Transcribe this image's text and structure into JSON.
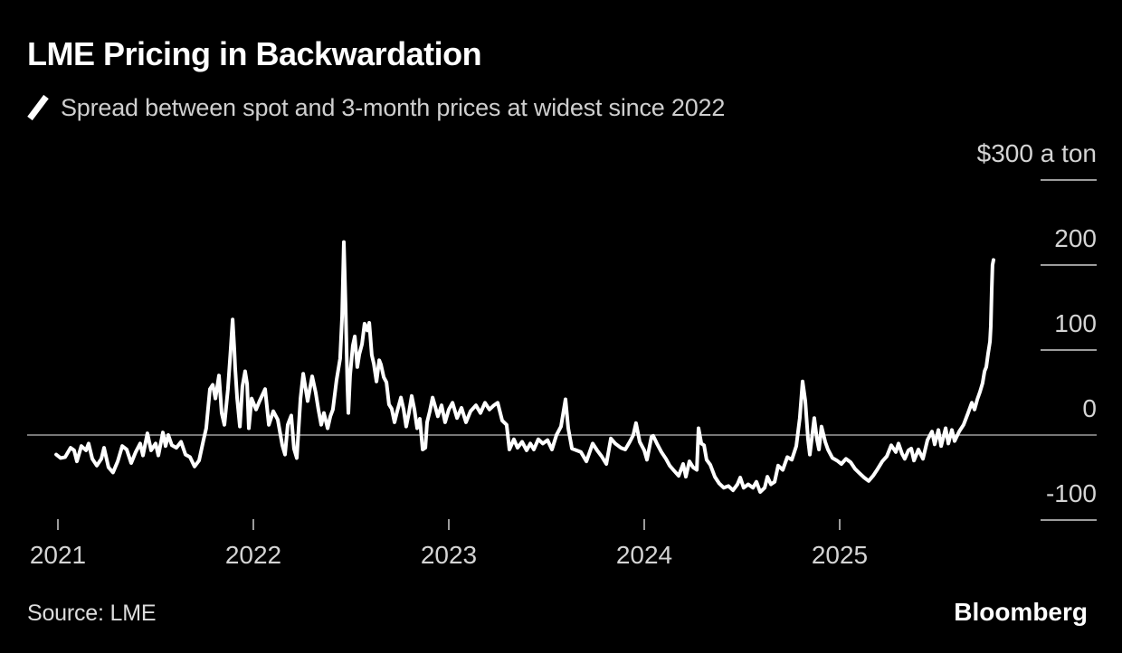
{
  "page": {
    "background": "#000000"
  },
  "header": {
    "title": "LME Pricing in Backwardation",
    "legend": {
      "icon": "line-series-marker",
      "text": "Spread between spot and 3-month prices at widest since 2022"
    }
  },
  "footer": {
    "source": "Source: LME",
    "brand": "Bloomberg"
  },
  "chart_data": {
    "type": "line",
    "title": "LME Pricing in Backwardation",
    "subtitle": "Spread between spot and 3-month prices at widest since 2022",
    "legend_position": "top-left",
    "grid": "zero-line-only",
    "x_axis": {
      "ticks": [
        2021,
        2022,
        2023,
        2024,
        2025
      ],
      "range": [
        2020.99,
        2025.84
      ]
    },
    "y_axis": {
      "side": "right",
      "range": [
        -100,
        300
      ],
      "ticks": [
        {
          "label": "$300 a ton",
          "value": 300
        },
        {
          "label": "200",
          "value": 200
        },
        {
          "label": "100",
          "value": 100
        },
        {
          "label": "0",
          "value": 0
        },
        {
          "label": "-100",
          "value": -100
        }
      ]
    },
    "colors": {
      "line": "#ffffff",
      "zero_line": "#767676",
      "tick": "#9c9c9c",
      "label": "#d4d4d4",
      "background": "#000000"
    },
    "points": [
      [
        2020.991,
        -23
      ],
      [
        2021.014,
        -27
      ],
      [
        2021.037,
        -26
      ],
      [
        2021.065,
        -15
      ],
      [
        2021.083,
        -18
      ],
      [
        2021.097,
        -31
      ],
      [
        2021.12,
        -13
      ],
      [
        2021.144,
        -18
      ],
      [
        2021.157,
        -10
      ],
      [
        2021.176,
        -28
      ],
      [
        2021.199,
        -36
      ],
      [
        2021.222,
        -28
      ],
      [
        2021.236,
        -15
      ],
      [
        2021.259,
        -38
      ],
      [
        2021.282,
        -44
      ],
      [
        2021.306,
        -31
      ],
      [
        2021.329,
        -13
      ],
      [
        2021.352,
        -17
      ],
      [
        2021.375,
        -33
      ],
      [
        2021.398,
        -20
      ],
      [
        2021.421,
        -10
      ],
      [
        2021.435,
        -24
      ],
      [
        2021.458,
        2
      ],
      [
        2021.477,
        -18
      ],
      [
        2021.5,
        -10
      ],
      [
        2021.514,
        -24
      ],
      [
        2021.537,
        3
      ],
      [
        2021.551,
        -13
      ],
      [
        2021.565,
        0
      ],
      [
        2021.583,
        -12
      ],
      [
        2021.606,
        -15
      ],
      [
        2021.63,
        -8
      ],
      [
        2021.653,
        -23
      ],
      [
        2021.676,
        -26
      ],
      [
        2021.699,
        -37
      ],
      [
        2021.722,
        -30
      ],
      [
        2021.745,
        -6
      ],
      [
        2021.759,
        8
      ],
      [
        2021.778,
        54
      ],
      [
        2021.792,
        59
      ],
      [
        2021.806,
        43
      ],
      [
        2021.824,
        70
      ],
      [
        2021.838,
        26
      ],
      [
        2021.852,
        12
      ],
      [
        2021.87,
        54
      ],
      [
        2021.884,
        100
      ],
      [
        2021.894,
        136
      ],
      [
        2021.903,
        100
      ],
      [
        2021.907,
        79
      ],
      [
        2021.917,
        43
      ],
      [
        2021.931,
        10
      ],
      [
        2021.944,
        57
      ],
      [
        2021.958,
        75
      ],
      [
        2021.968,
        60
      ],
      [
        2021.977,
        8
      ],
      [
        2021.991,
        43
      ],
      [
        2022.014,
        30
      ],
      [
        2022.032,
        40
      ],
      [
        2022.06,
        54
      ],
      [
        2022.079,
        12
      ],
      [
        2022.102,
        28
      ],
      [
        2022.125,
        18
      ],
      [
        2022.148,
        -12
      ],
      [
        2022.162,
        -23
      ],
      [
        2022.176,
        12
      ],
      [
        2022.194,
        23
      ],
      [
        2022.208,
        -16
      ],
      [
        2022.222,
        -27
      ],
      [
        2022.241,
        43
      ],
      [
        2022.255,
        72
      ],
      [
        2022.278,
        40
      ],
      [
        2022.301,
        69
      ],
      [
        2022.319,
        50
      ],
      [
        2022.333,
        30
      ],
      [
        2022.347,
        12
      ],
      [
        2022.361,
        26
      ],
      [
        2022.38,
        8
      ],
      [
        2022.394,
        22
      ],
      [
        2022.407,
        30
      ],
      [
        2022.426,
        65
      ],
      [
        2022.444,
        90
      ],
      [
        2022.454,
        140
      ],
      [
        2022.463,
        227
      ],
      [
        2022.472,
        150
      ],
      [
        2022.481,
        60
      ],
      [
        2022.486,
        26
      ],
      [
        2022.495,
        70
      ],
      [
        2022.509,
        105
      ],
      [
        2022.519,
        116
      ],
      [
        2022.532,
        80
      ],
      [
        2022.542,
        95
      ],
      [
        2022.556,
        107
      ],
      [
        2022.569,
        131
      ],
      [
        2022.583,
        123
      ],
      [
        2022.593,
        132
      ],
      [
        2022.606,
        94
      ],
      [
        2022.616,
        84
      ],
      [
        2022.63,
        63
      ],
      [
        2022.644,
        88
      ],
      [
        2022.653,
        83
      ],
      [
        2022.667,
        68
      ],
      [
        2022.681,
        62
      ],
      [
        2022.694,
        36
      ],
      [
        2022.708,
        31
      ],
      [
        2022.722,
        15
      ],
      [
        2022.736,
        28
      ],
      [
        2022.755,
        44
      ],
      [
        2022.769,
        30
      ],
      [
        2022.782,
        10
      ],
      [
        2022.796,
        26
      ],
      [
        2022.81,
        46
      ],
      [
        2022.824,
        30
      ],
      [
        2022.838,
        8
      ],
      [
        2022.852,
        19
      ],
      [
        2022.866,
        -17
      ],
      [
        2022.88,
        -15
      ],
      [
        2022.889,
        15
      ],
      [
        2022.903,
        28
      ],
      [
        2022.917,
        44
      ],
      [
        2022.931,
        33
      ],
      [
        2022.944,
        22
      ],
      [
        2022.963,
        35
      ],
      [
        2022.981,
        15
      ],
      [
        2023.0,
        30
      ],
      [
        2023.019,
        38
      ],
      [
        2023.042,
        20
      ],
      [
        2023.065,
        32
      ],
      [
        2023.088,
        15
      ],
      [
        2023.111,
        28
      ],
      [
        2023.139,
        35
      ],
      [
        2023.162,
        26
      ],
      [
        2023.185,
        38
      ],
      [
        2023.208,
        30
      ],
      [
        2023.231,
        35
      ],
      [
        2023.25,
        38
      ],
      [
        2023.273,
        17
      ],
      [
        2023.296,
        12
      ],
      [
        2023.31,
        -17
      ],
      [
        2023.333,
        -5
      ],
      [
        2023.352,
        -15
      ],
      [
        2023.375,
        -8
      ],
      [
        2023.398,
        -18
      ],
      [
        2023.417,
        -10
      ],
      [
        2023.435,
        -17
      ],
      [
        2023.458,
        -5
      ],
      [
        2023.481,
        -10
      ],
      [
        2023.505,
        -6
      ],
      [
        2023.528,
        -17
      ],
      [
        2023.551,
        0
      ],
      [
        2023.574,
        10
      ],
      [
        2023.597,
        42
      ],
      [
        2023.611,
        8
      ],
      [
        2023.63,
        -16
      ],
      [
        2023.653,
        -18
      ],
      [
        2023.676,
        -20
      ],
      [
        2023.704,
        -31
      ],
      [
        2023.736,
        -10
      ],
      [
        2023.759,
        -18
      ],
      [
        2023.782,
        -25
      ],
      [
        2023.806,
        -34
      ],
      [
        2023.829,
        -4
      ],
      [
        2023.852,
        -10
      ],
      [
        2023.88,
        -15
      ],
      [
        2023.903,
        -17
      ],
      [
        2023.926,
        -8
      ],
      [
        2023.944,
        0
      ],
      [
        2023.958,
        14
      ],
      [
        2023.977,
        -8
      ],
      [
        2024.0,
        -18
      ],
      [
        2024.014,
        -29
      ],
      [
        2024.037,
        -2
      ],
      [
        2024.046,
        -1
      ],
      [
        2024.065,
        -10
      ],
      [
        2024.088,
        -20
      ],
      [
        2024.111,
        -28
      ],
      [
        2024.13,
        -36
      ],
      [
        2024.153,
        -42
      ],
      [
        2024.176,
        -48
      ],
      [
        2024.199,
        -34
      ],
      [
        2024.213,
        -49
      ],
      [
        2024.231,
        -31
      ],
      [
        2024.25,
        -38
      ],
      [
        2024.269,
        -41
      ],
      [
        2024.278,
        8
      ],
      [
        2024.292,
        -10
      ],
      [
        2024.306,
        -12
      ],
      [
        2024.319,
        -29
      ],
      [
        2024.338,
        -35
      ],
      [
        2024.361,
        -49
      ],
      [
        2024.384,
        -57
      ],
      [
        2024.407,
        -62
      ],
      [
        2024.431,
        -60
      ],
      [
        2024.454,
        -65
      ],
      [
        2024.477,
        -58
      ],
      [
        2024.491,
        -50
      ],
      [
        2024.509,
        -62
      ],
      [
        2024.532,
        -58
      ],
      [
        2024.556,
        -62
      ],
      [
        2024.574,
        -55
      ],
      [
        2024.593,
        -67
      ],
      [
        2024.616,
        -62
      ],
      [
        2024.63,
        -49
      ],
      [
        2024.648,
        -58
      ],
      [
        2024.667,
        -55
      ],
      [
        2024.685,
        -36
      ],
      [
        2024.709,
        -41
      ],
      [
        2024.732,
        -26
      ],
      [
        2024.755,
        -29
      ],
      [
        2024.778,
        -13
      ],
      [
        2024.796,
        20
      ],
      [
        2024.81,
        63
      ],
      [
        2024.824,
        40
      ],
      [
        2024.838,
        -5
      ],
      [
        2024.847,
        -23
      ],
      [
        2024.87,
        20
      ],
      [
        2024.884,
        -5
      ],
      [
        2024.894,
        -17
      ],
      [
        2024.907,
        10
      ],
      [
        2024.926,
        -8
      ],
      [
        2024.94,
        -17
      ],
      [
        2024.963,
        -27
      ],
      [
        2024.986,
        -30
      ],
      [
        2025.009,
        -34
      ],
      [
        2025.032,
        -28
      ],
      [
        2025.056,
        -32
      ],
      [
        2025.079,
        -40
      ],
      [
        2025.102,
        -45
      ],
      [
        2025.125,
        -50
      ],
      [
        2025.148,
        -54
      ],
      [
        2025.171,
        -48
      ],
      [
        2025.194,
        -40
      ],
      [
        2025.218,
        -31
      ],
      [
        2025.241,
        -25
      ],
      [
        2025.264,
        -12
      ],
      [
        2025.287,
        -20
      ],
      [
        2025.301,
        -10
      ],
      [
        2025.319,
        -22
      ],
      [
        2025.333,
        -28
      ],
      [
        2025.352,
        -18
      ],
      [
        2025.366,
        -16
      ],
      [
        2025.38,
        -30
      ],
      [
        2025.403,
        -17
      ],
      [
        2025.426,
        -28
      ],
      [
        2025.449,
        -6
      ],
      [
        2025.472,
        4
      ],
      [
        2025.486,
        -11
      ],
      [
        2025.505,
        6
      ],
      [
        2025.519,
        -13
      ],
      [
        2025.542,
        8
      ],
      [
        2025.556,
        -10
      ],
      [
        2025.574,
        6
      ],
      [
        2025.588,
        -7
      ],
      [
        2025.611,
        4
      ],
      [
        2025.634,
        12
      ],
      [
        2025.657,
        26
      ],
      [
        2025.676,
        38
      ],
      [
        2025.69,
        30
      ],
      [
        2025.704,
        42
      ],
      [
        2025.718,
        51
      ],
      [
        2025.731,
        61
      ],
      [
        2025.741,
        75
      ],
      [
        2025.75,
        80
      ],
      [
        2025.759,
        95
      ],
      [
        2025.769,
        110
      ],
      [
        2025.773,
        128
      ],
      [
        2025.778,
        170
      ],
      [
        2025.782,
        200
      ],
      [
        2025.787,
        206
      ]
    ]
  }
}
